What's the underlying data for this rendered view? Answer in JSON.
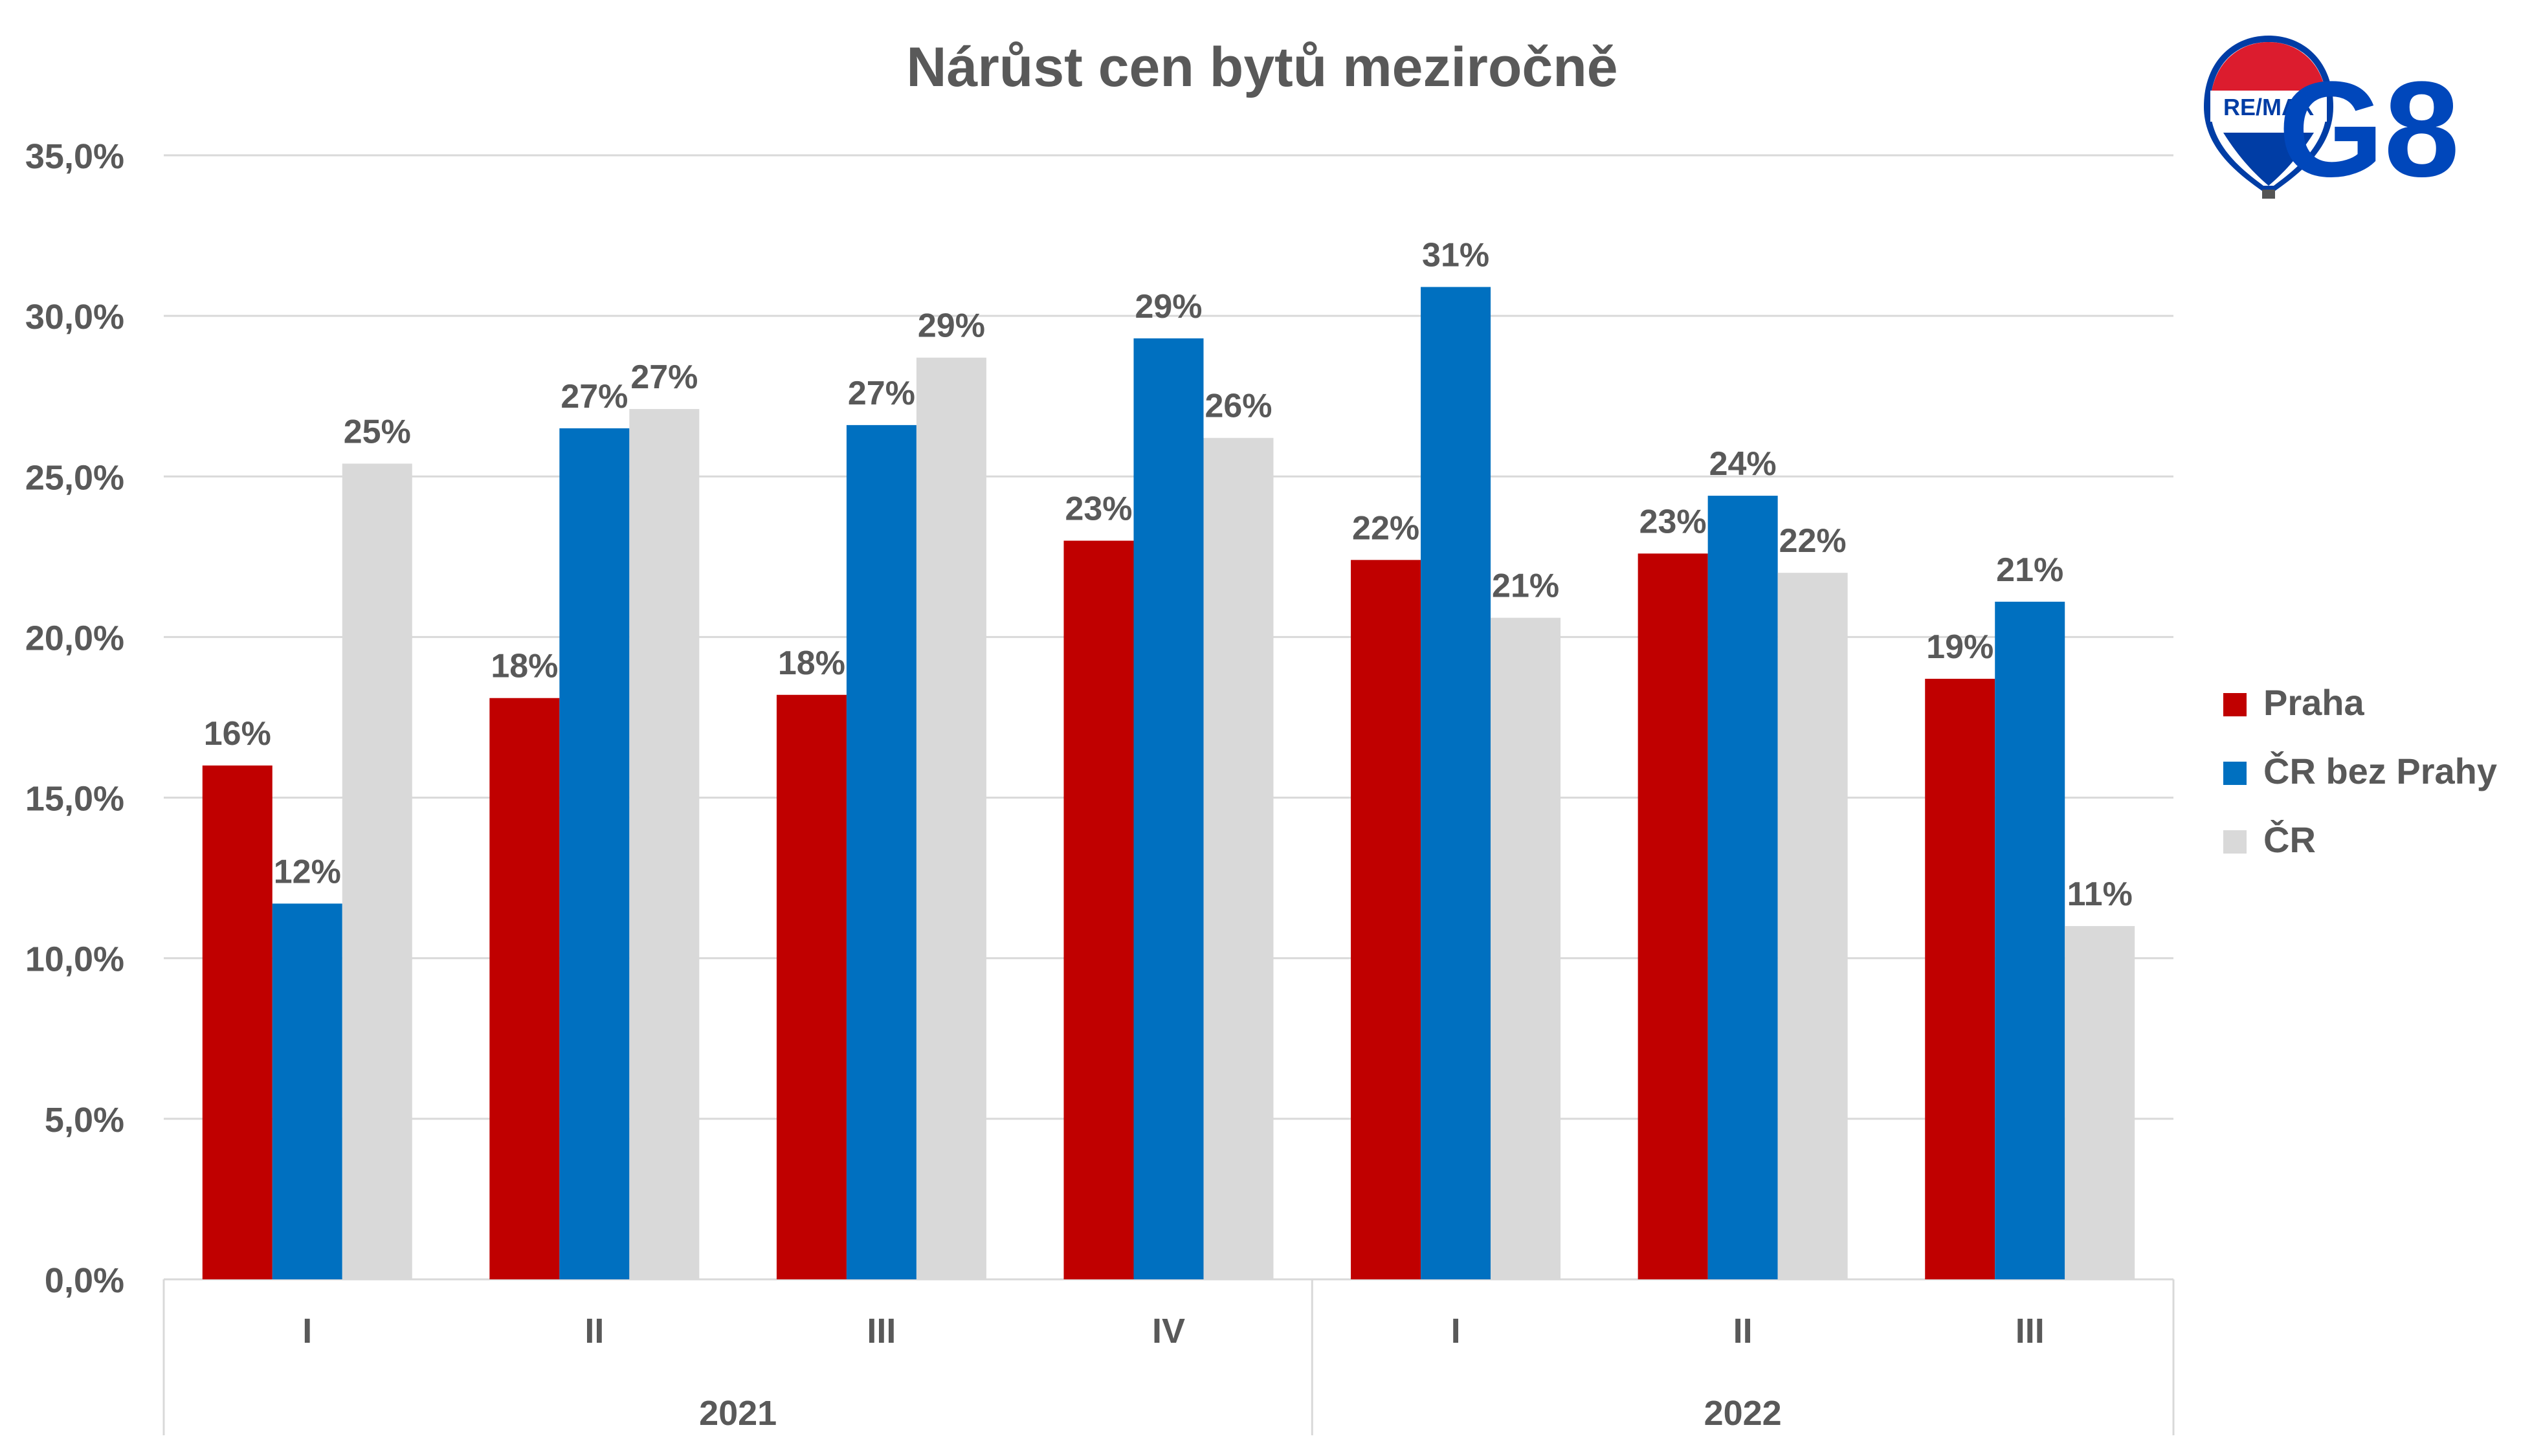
{
  "chart_data": {
    "type": "bar",
    "title": "Nárůst cen bytů meziročně",
    "xlabel": "",
    "ylabel": "",
    "ylim": [
      0,
      0.35
    ],
    "y_ticks": [
      "0,0%",
      "5,0%",
      "10,0%",
      "15,0%",
      "20,0%",
      "25,0%",
      "30,0%",
      "35,0%"
    ],
    "grid": true,
    "legend_position": "right",
    "groups": [
      {
        "label": "2021",
        "categories": [
          "I",
          "II",
          "III",
          "IV"
        ]
      },
      {
        "label": "2022",
        "categories": [
          "I",
          "II",
          "III"
        ]
      }
    ],
    "categories": [
      "I",
      "II",
      "III",
      "IV",
      "I",
      "II",
      "III"
    ],
    "series": [
      {
        "name": "Praha",
        "color": "#C00000",
        "values": [
          0.16,
          0.181,
          0.182,
          0.23,
          0.224,
          0.226,
          0.187
        ],
        "labels": [
          "16%",
          "18%",
          "18%",
          "23%",
          "22%",
          "23%",
          "19%"
        ]
      },
      {
        "name": "ČR bez Prahy",
        "color": "#0070C0",
        "values": [
          0.117,
          0.265,
          0.266,
          0.293,
          0.309,
          0.244,
          0.211
        ],
        "labels": [
          "12%",
          "27%",
          "27%",
          "29%",
          "31%",
          "24%",
          "21%"
        ]
      },
      {
        "name": "ČR",
        "color": "#D9D9D9",
        "values": [
          0.254,
          0.271,
          0.287,
          0.262,
          0.206,
          0.22,
          0.11
        ],
        "labels": [
          "25%",
          "27%",
          "29%",
          "26%",
          "21%",
          "22%",
          "11%"
        ]
      }
    ]
  },
  "logos": {
    "remax": {
      "text": "RE/MAX",
      "icon": "hot-air-balloon-icon"
    },
    "g8": {
      "text": "G8"
    }
  },
  "colors": {
    "axis_text": "#595959",
    "grid": "#D9D9D9",
    "g8_blue": "#0047BB",
    "remax_red": "#DC1C2E",
    "remax_blue": "#003DA5"
  }
}
